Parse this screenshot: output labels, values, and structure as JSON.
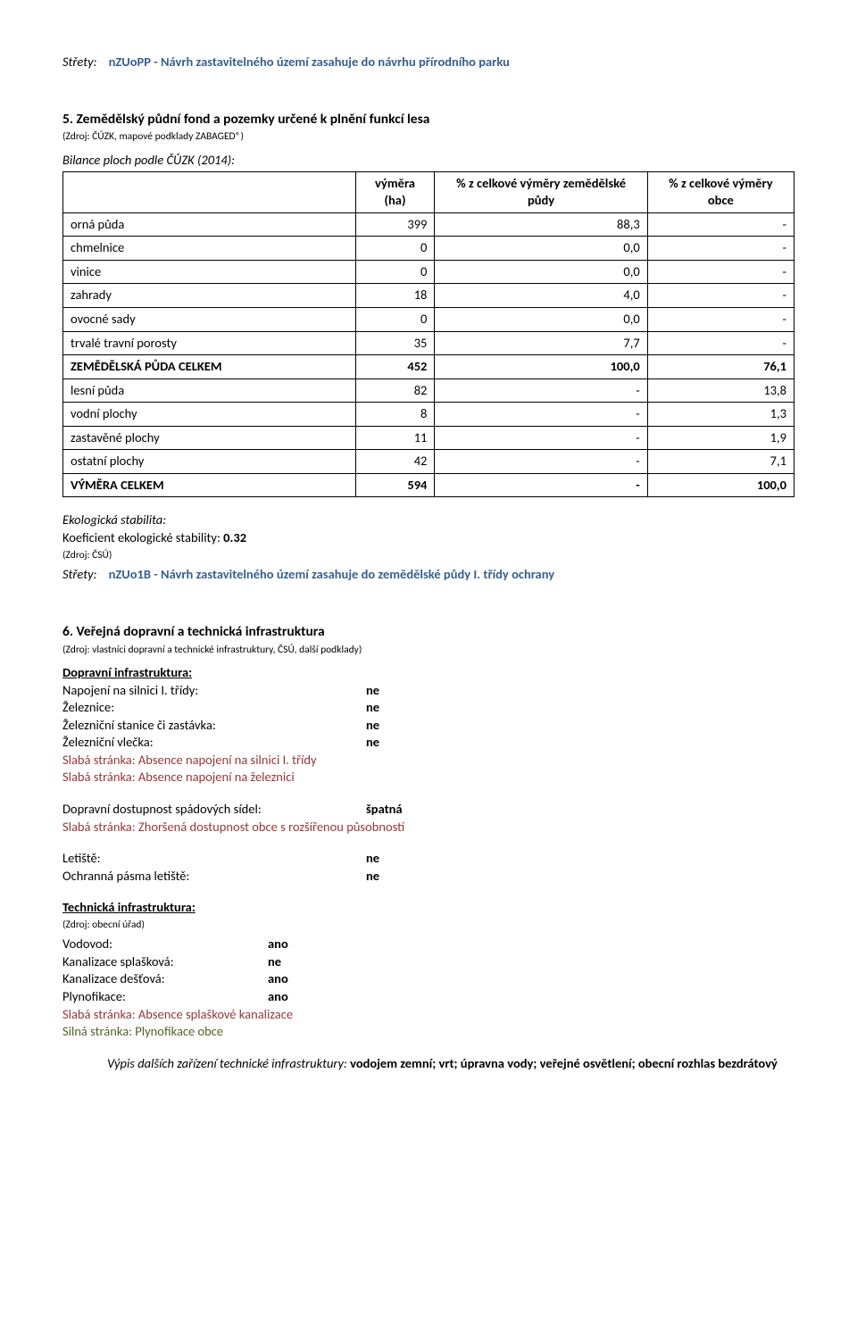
{
  "topConflict": {
    "prefix": "Střety:",
    "body": "nZUoPP - Návrh zastavitelného území zasahuje do návrhu přírodního parku"
  },
  "section5": {
    "title": "5. Zemědělský půdní fond a pozemky určené k plnění funkcí lesa",
    "src": "(Zdroj: ČÚZK, mapové podklady ZABAGED®)",
    "balanceLine": "Bilance ploch podle ČÚZK (2014):",
    "headers": [
      "",
      "výměra (ha)",
      "% z celkové výměry zemědělské půdy",
      "% z celkové výměry obce"
    ],
    "rows": [
      {
        "label": "orná půda",
        "c1": "399",
        "c2": "88,3",
        "c3": "-",
        "bold": false
      },
      {
        "label": "chmelnice",
        "c1": "0",
        "c2": "0,0",
        "c3": "-",
        "bold": false
      },
      {
        "label": "vinice",
        "c1": "0",
        "c2": "0,0",
        "c3": "-",
        "bold": false
      },
      {
        "label": "zahrady",
        "c1": "18",
        "c2": "4,0",
        "c3": "-",
        "bold": false
      },
      {
        "label": "ovocné sady",
        "c1": "0",
        "c2": "0,0",
        "c3": "-",
        "bold": false
      },
      {
        "label": "trvalé travní porosty",
        "c1": "35",
        "c2": "7,7",
        "c3": "-",
        "bold": false
      },
      {
        "label": "ZEMĚDĚLSKÁ PŮDA CELKEM",
        "c1": "452",
        "c2": "100,0",
        "c3": "76,1",
        "bold": true
      },
      {
        "label": "lesní půda",
        "c1": "82",
        "c2": "-",
        "c3": "13,8",
        "bold": false
      },
      {
        "label": "vodní plochy",
        "c1": "8",
        "c2": "-",
        "c3": "1,3",
        "bold": false
      },
      {
        "label": "zastavěné plochy",
        "c1": "11",
        "c2": "-",
        "c3": "1,9",
        "bold": false
      },
      {
        "label": "ostatní plochy",
        "c1": "42",
        "c2": "-",
        "c3": "7,1",
        "bold": false
      },
      {
        "label": "VÝMĚRA CELKEM",
        "c1": "594",
        "c2": "-",
        "c3": "100,0",
        "bold": true
      }
    ],
    "ecoTitle": "Ekologická stabilita:",
    "coefPrefix": "Koeficient ekologické stability: ",
    "coefVal": "0.32",
    "coefSrc": "(Zdroj: ČSÚ)",
    "conflictPrefix": "Střety:",
    "conflictBody": "nZUo1B - Návrh zastavitelného území zasahuje do zemědělské půdy I. třídy ochrany"
  },
  "section6": {
    "title": "6. Veřejná dopravní a technická infrastruktura",
    "src": "(Zdroj: vlastníci dopravní a technické infrastruktury, ČSÚ, další podklady)",
    "transportHeader": "Dopravní infrastruktura:",
    "rows1": [
      {
        "k": "Napojení na silnici I. třídy:",
        "v": "ne"
      },
      {
        "k": "Železnice:",
        "v": "ne"
      },
      {
        "k": "Železniční stanice či zastávka:",
        "v": "ne"
      },
      {
        "k": "Železniční vlečka:",
        "v": "ne"
      }
    ],
    "weak1": "Slabá stránka: Absence napojení na silnici I. třídy",
    "weak2": "Slabá stránka: Absence napojení na železnici",
    "accessK": "Dopravní dostupnost spádových sídel:",
    "accessV": "špatná",
    "weak3": "Slabá stránka: Zhoršená dostupnost obce s rozšířenou působností",
    "rows2": [
      {
        "k": "Letiště:",
        "v": "ne"
      },
      {
        "k": "Ochranná pásma letiště:",
        "v": "ne"
      }
    ],
    "techHeader": "Technická infrastruktura:",
    "techSrc": "(Zdroj: obecní úřad)",
    "rows3": [
      {
        "k": "Vodovod:",
        "v": "ano"
      },
      {
        "k": "Kanalizace splašková:",
        "v": "ne"
      },
      {
        "k": "Kanalizace dešťová:",
        "v": "ano"
      },
      {
        "k": "Plynofikace:",
        "v": "ano"
      }
    ],
    "weak4": "Slabá stránka: Absence splaškové kanalizace",
    "strong1": "Silná stránka: Plynofikace obce",
    "furtherPrefix": "Výpis dalších zařízení technické infrastruktury: ",
    "furtherBody": "vodojem zemní; vrt; úpravna vody; veřejné osvětlení; obecní rozhlas bezdrátový"
  }
}
